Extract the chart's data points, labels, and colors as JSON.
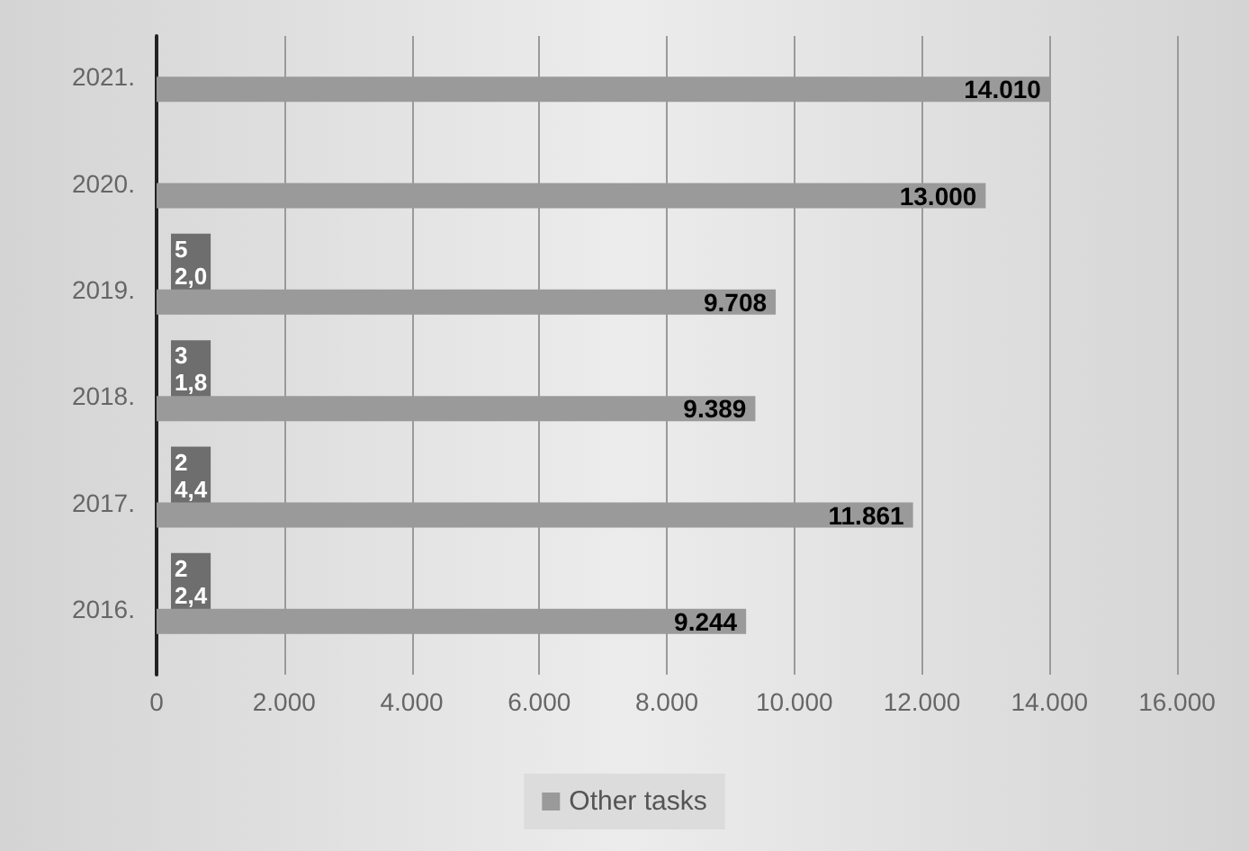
{
  "chart_data": {
    "type": "bar",
    "orientation": "horizontal",
    "categories": [
      "2021.",
      "2020.",
      "2019.",
      "2018.",
      "2017.",
      "2016."
    ],
    "series": [
      {
        "name": "Other tasks",
        "color": "#9a9a9a",
        "values": [
          14010,
          13000,
          9708,
          9389,
          11861,
          9244
        ],
        "value_labels": [
          "14.010",
          "13.000",
          "9.708",
          "9.389",
          "11.861",
          "9.244"
        ]
      }
    ],
    "xlim": [
      0,
      16000
    ],
    "xticks": [
      0,
      {
        "value": 2000,
        "label": "2.000"
      },
      {
        "value": 4000,
        "label": "4.000"
      },
      {
        "value": 6000,
        "label": "6.000"
      },
      {
        "value": 8000,
        "label": "8.000"
      },
      {
        "value": 10000,
        "label": "10.000"
      },
      {
        "value": 12000,
        "label": "12.000"
      },
      {
        "value": 14000,
        "label": "14.000"
      },
      {
        "value": 16000,
        "label": "16.000"
      }
    ],
    "grid": "x",
    "legend": "bottom",
    "annotations": [
      {
        "text": "5\n2,0",
        "y": "2019."
      },
      {
        "text": "3\n1,8",
        "y": "2018."
      },
      {
        "text": "2\n4,4",
        "y": "2017."
      },
      {
        "text": "2\n2,4",
        "y": "2016."
      }
    ]
  }
}
